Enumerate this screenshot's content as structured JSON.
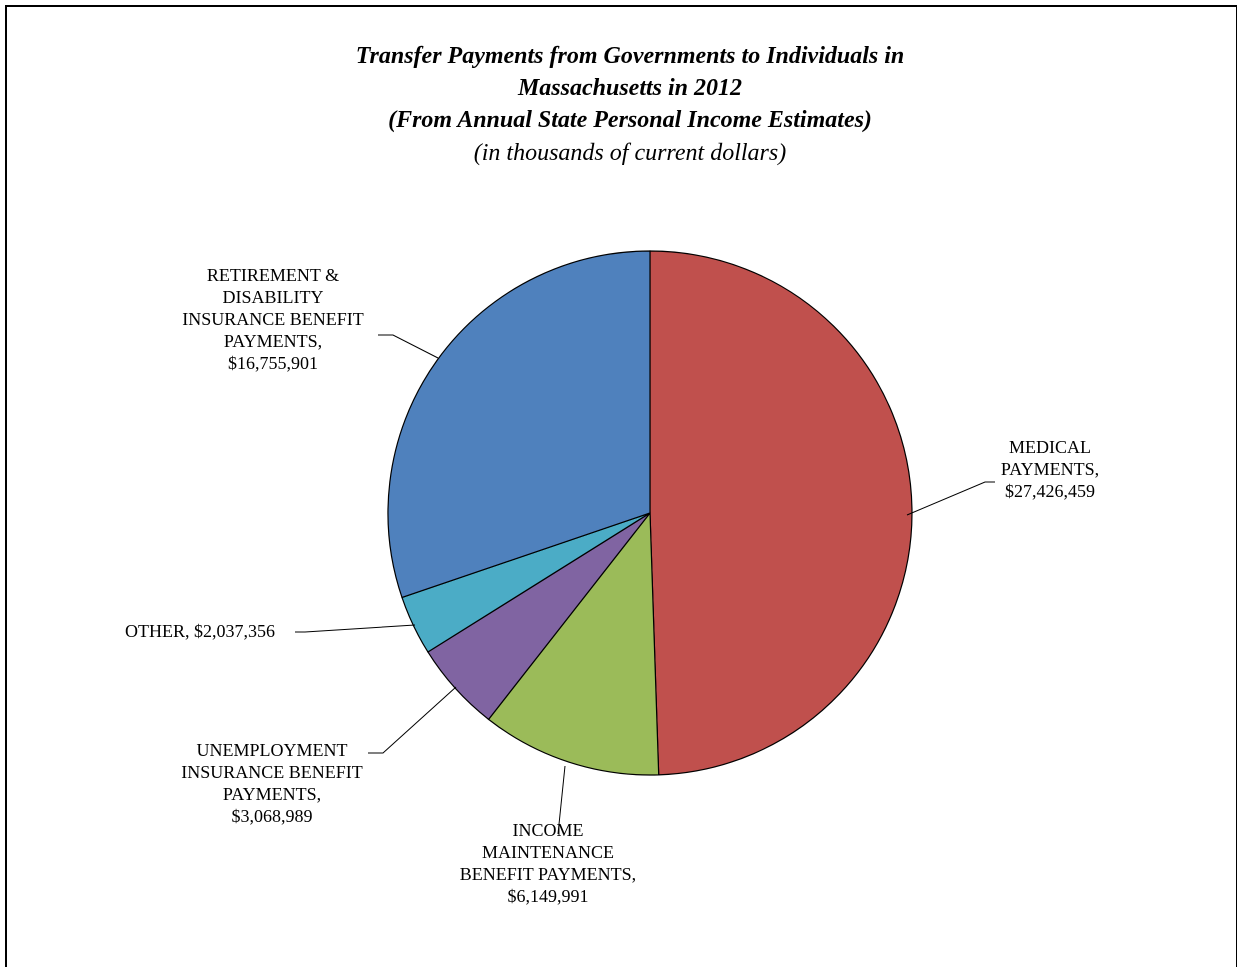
{
  "chart_data": {
    "type": "pie",
    "title_lines": [
      "Transfer Payments from Governments to Individuals in",
      "Massachusetts in 2012",
      "(From Annual State Personal Income Estimates)"
    ],
    "subtitle": "(in thousands of current dollars)",
    "slices": [
      {
        "name": "MEDICAL PAYMENTS",
        "value": 27426459,
        "color": "#C0504D",
        "label_lines": [
          "MEDICAL",
          "PAYMENTS,",
          "$27,426,459"
        ]
      },
      {
        "name": "INCOME MAINTENANCE BENEFIT PAYMENTS",
        "value": 6149991,
        "color": "#9BBB59",
        "label_lines": [
          "INCOME",
          "MAINTENANCE",
          "BENEFIT PAYMENTS,",
          "$6,149,991"
        ]
      },
      {
        "name": "UNEMPLOYMENT INSURANCE BENEFIT PAYMENTS",
        "value": 3068989,
        "color": "#8064A2",
        "label_lines": [
          "UNEMPLOYMENT",
          "INSURANCE BENEFIT",
          "PAYMENTS,",
          "$3,068,989"
        ]
      },
      {
        "name": "OTHER",
        "value": 2037356,
        "color": "#4BACC6",
        "label_lines": [
          "OTHER,  $2,037,356"
        ]
      },
      {
        "name": "RETIREMENT & DISABILITY INSURANCE BENEFIT PAYMENTS",
        "value": 16755901,
        "color": "#4F81BD",
        "label_lines": [
          "RETIREMENT &",
          "DISABILITY",
          "INSURANCE BENEFIT",
          "PAYMENTS,",
          "$16,755,901"
        ]
      }
    ]
  }
}
